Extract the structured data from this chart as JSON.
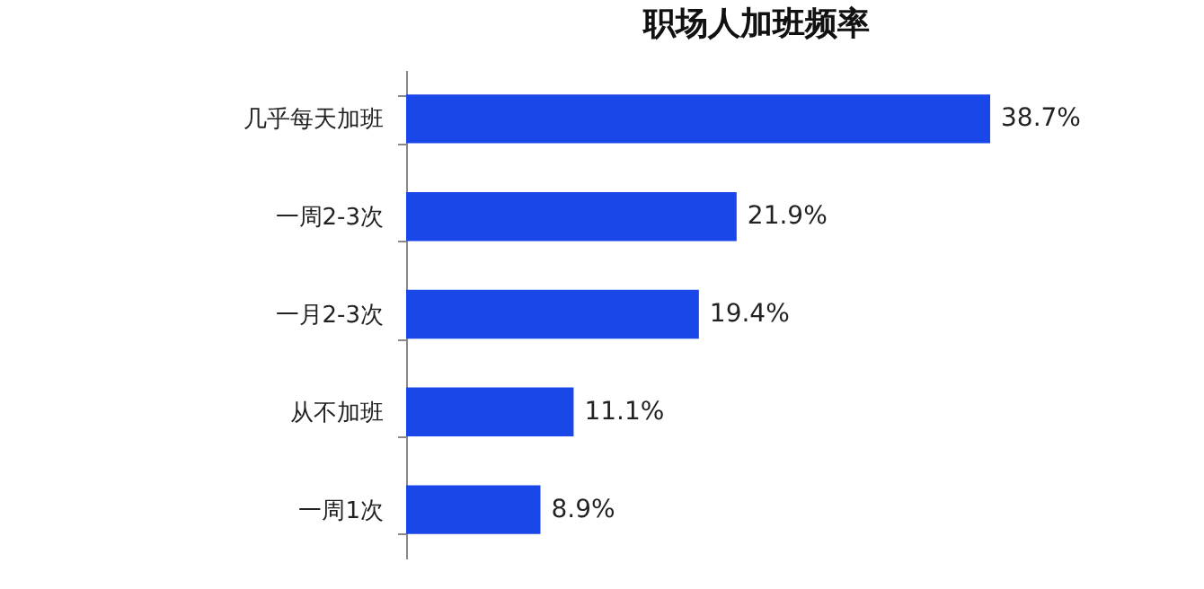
{
  "chart_data": {
    "type": "bar",
    "orientation": "horizontal",
    "title": "职场人加班频率",
    "categories": [
      "几乎每天加班",
      "一周2-3次",
      "一月2-3次",
      "从不加班",
      "一周1次"
    ],
    "values": [
      38.7,
      21.9,
      19.4,
      11.1,
      8.9
    ],
    "value_labels": [
      "38.7%",
      "21.9%",
      "19.4%",
      "11.1%",
      "8.9%"
    ],
    "color": "#1a47e8"
  }
}
